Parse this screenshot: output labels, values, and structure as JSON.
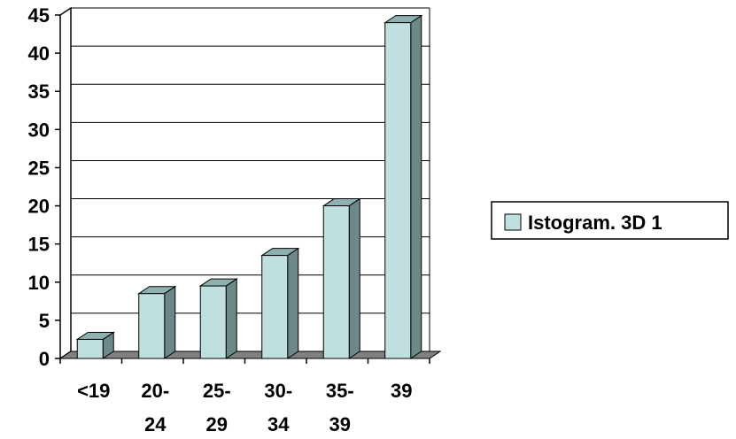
{
  "chart_data": {
    "type": "bar",
    "style": "3d-column",
    "categories": [
      [
        "<19"
      ],
      [
        "20-",
        "24"
      ],
      [
        "25-",
        "29"
      ],
      [
        "30-",
        "34"
      ],
      [
        "35-",
        "39"
      ],
      [
        "39"
      ]
    ],
    "series": [
      {
        "name": "Istogram. 3D 1",
        "values": [
          2.5,
          8.5,
          9.5,
          13.5,
          20,
          44
        ]
      }
    ],
    "ylim": [
      0,
      45
    ],
    "yticks": [
      "0",
      "5",
      "10",
      "15",
      "20",
      "25",
      "30",
      "35",
      "40",
      "45"
    ],
    "grid": true,
    "legend": "right",
    "colors": {
      "bar_front": "#c0e0e0",
      "bar_side": "#6c8888",
      "bar_top": "#8eb0b0",
      "floor": "#808080",
      "grid": "#000000"
    }
  }
}
